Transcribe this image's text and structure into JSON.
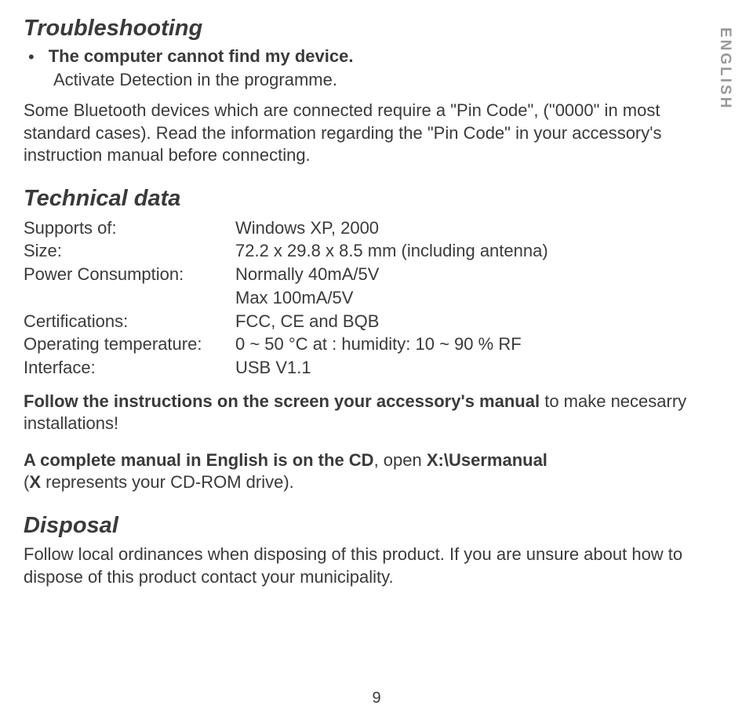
{
  "side_label": "ENGLISH",
  "troubleshooting": {
    "heading": "Troubleshooting",
    "bullet_bold": "The computer cannot find my device.",
    "bullet_sub": "Activate Detection in the programme.",
    "para": "Some Bluetooth devices which are connected require a \"Pin Code\", (\"0000\" in most standard cases). Read the information regarding the \"Pin Code\" in your accessory's instruction manual before connecting."
  },
  "technical": {
    "heading": "Technical data",
    "rows": [
      {
        "label": "Supports of:",
        "value": "Windows XP, 2000"
      },
      {
        "label": "Size:",
        "value": "72.2 x 29.8 x 8.5 mm (including antenna)"
      },
      {
        "label": "Power Consumption:",
        "value": "Normally 40mA/5V"
      },
      {
        "label": "",
        "value": "Max 100mA/5V"
      },
      {
        "label": "Certifications:",
        "value": "FCC, CE and BQB"
      },
      {
        "label": "Operating temperature:",
        "value": "0 ~ 50 °C at : humidity: 10 ~ 90 % RF"
      },
      {
        "label": "Interface:",
        "value": "USB V1.1"
      }
    ],
    "follow_bold": "Follow the instructions on the screen your accessory's manual ",
    "follow_plain": " to make necesarry installations!",
    "manual_bold": "A complete manual in English is on the CD",
    "manual_mid": ", open ",
    "manual_path": "X:\\Usermanual",
    "manual_tail1": "(",
    "manual_x": "X",
    "manual_tail2": " represents your CD-ROM drive)."
  },
  "disposal": {
    "heading": "Disposal",
    "para": "Follow local ordinances when disposing of this product. If you are unsure about how to dispose of this product contact your municipality."
  },
  "page_number": "9"
}
